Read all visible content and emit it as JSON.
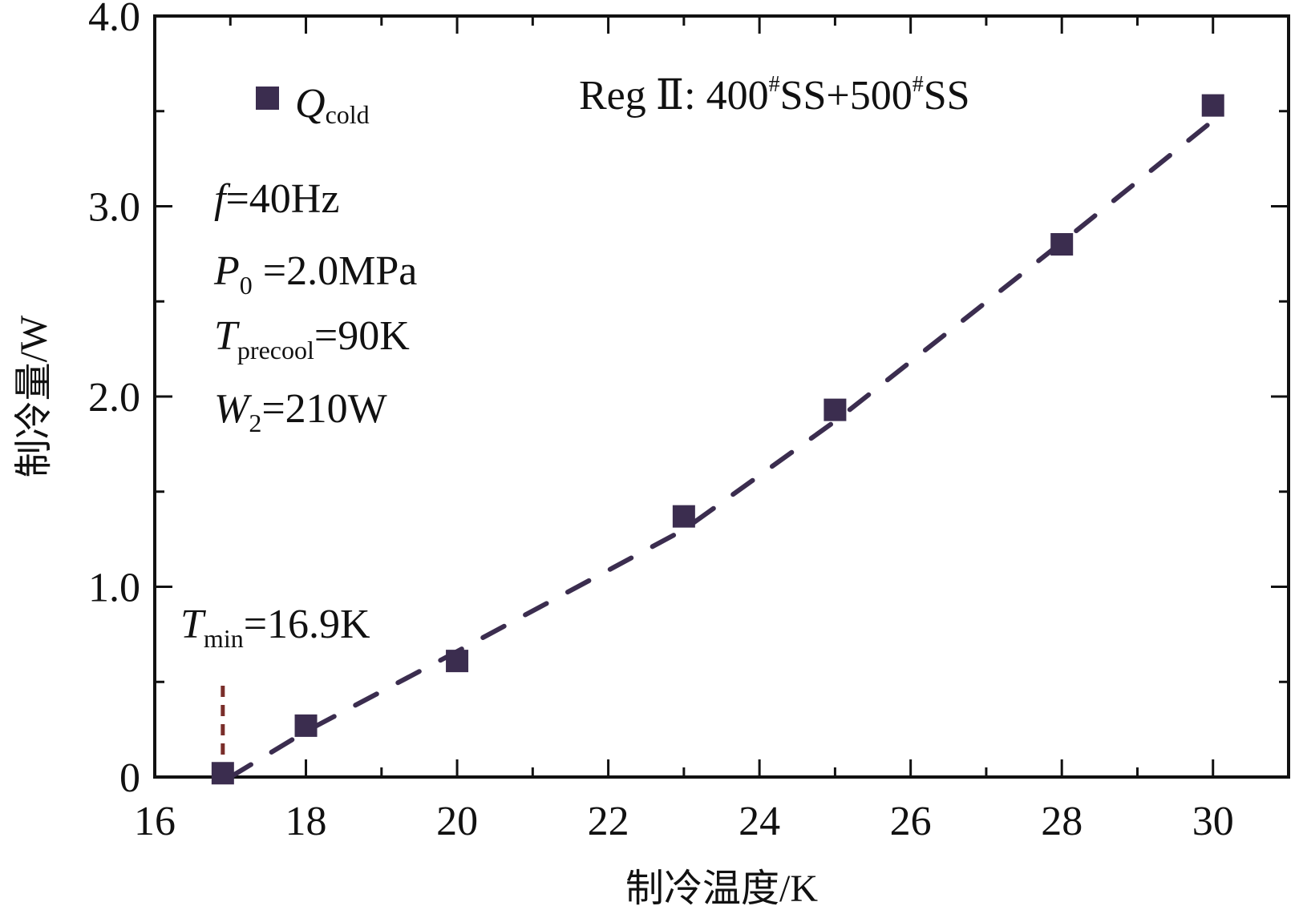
{
  "chart_data": {
    "type": "scatter",
    "title": "",
    "xlabel": "制冷温度/K",
    "ylabel": "制冷量/W",
    "xlim": [
      16,
      31
    ],
    "ylim": [
      0,
      4.0
    ],
    "xticks": [
      16,
      18,
      20,
      22,
      24,
      26,
      28,
      30
    ],
    "xtick_labels": [
      "16",
      "18",
      "20",
      "22",
      "24",
      "26",
      "28",
      "30"
    ],
    "yticks": [
      0,
      1.0,
      2.0,
      3.0,
      4.0
    ],
    "ytick_labels": [
      "0",
      "1.0",
      "2.0",
      "3.0",
      "4.0"
    ],
    "grid": false,
    "legend_position": "top-left",
    "series": [
      {
        "name_main": "Q",
        "name_sub": "cold",
        "color": "#3b2d4f",
        "marker": "square",
        "x": [
          16.9,
          18,
          20,
          23,
          25,
          28,
          30
        ],
        "y": [
          0.02,
          0.27,
          0.61,
          1.37,
          1.93,
          2.8,
          3.53
        ]
      }
    ],
    "trend_line": {
      "style": "dashed",
      "color": "#3b2d4f",
      "x": [
        17.0,
        18,
        20,
        23,
        25,
        28,
        30
      ],
      "y": [
        0.0,
        0.24,
        0.66,
        1.3,
        1.87,
        2.81,
        3.45
      ]
    },
    "tmin_marker": {
      "x": 16.9,
      "y_top": 0.48,
      "color": "#7a2e2a",
      "style": "dashed"
    },
    "annotations": {
      "reg_prefix": "Reg",
      "reg_numeral": "Ⅱ",
      "reg_colon": ": ",
      "reg_val1": "400",
      "reg_sup1": "#",
      "reg_mid": "SS+500",
      "reg_sup2": "#",
      "reg_tail": "SS",
      "f_symbol": "f",
      "f_value": "=40Hz",
      "p_symbol": "P",
      "p_sub": "0",
      "p_value": " =2.0MPa",
      "t_symbol": "T",
      "t_sub": "precool",
      "t_value": "=90K",
      "w_symbol": "W",
      "w_sub": "2",
      "w_value": "=210W",
      "tmin_symbol": "T",
      "tmin_sub": "min",
      "tmin_value": "=16.9K"
    }
  }
}
